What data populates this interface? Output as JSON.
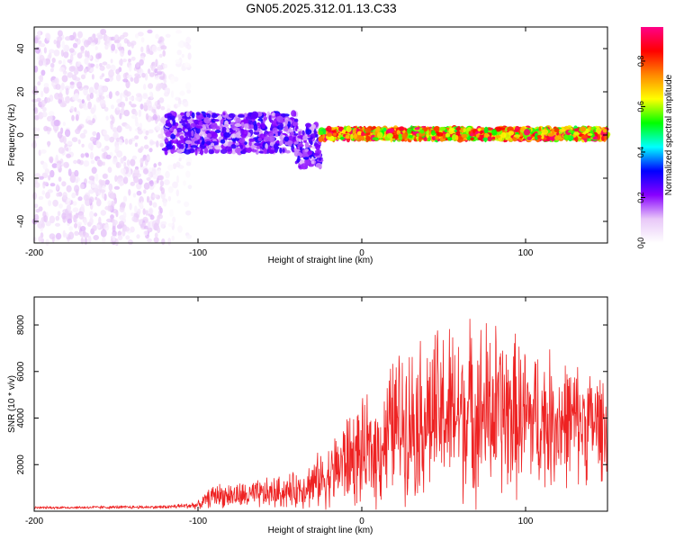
{
  "title": "GN05.2025.312.01.13.C33",
  "chart_data": [
    {
      "type": "heatmap",
      "name": "spectrogram",
      "xlabel": "Height of straight line (km)",
      "ylabel": "Frequency (Hz)",
      "xlim": [
        -200,
        150
      ],
      "ylim": [
        -50,
        50
      ],
      "xticks": [
        -200,
        -100,
        0,
        100
      ],
      "yticks": [
        -40,
        -20,
        0,
        20,
        40
      ],
      "colorbar": {
        "label": "Normalized spectral amplitude",
        "range": [
          0,
          0.95
        ],
        "ticks": [
          "0.0",
          "0.2",
          "0.4",
          "0.6",
          "0.8"
        ],
        "tick_values": [
          0,
          0.2,
          0.4,
          0.6,
          0.8
        ],
        "colors": [
          "#ffffff",
          "#e8c8f8",
          "#8800ff",
          "#0000ff",
          "#00ffff",
          "#00ff00",
          "#ffff00",
          "#ff8800",
          "#ff0000",
          "#ff0088"
        ]
      },
      "regions": [
        {
          "x": [
            -200,
            -120
          ],
          "freq_range": [
            -50,
            48
          ],
          "amplitude": [
            0.02,
            0.12
          ],
          "description_type": "noise"
        },
        {
          "x": [
            -120,
            -105
          ],
          "freq_range": [
            -50,
            48
          ],
          "amplitude": [
            0.01,
            0.05
          ],
          "description_type": "sparse-noise"
        },
        {
          "x": [
            -120,
            -40
          ],
          "freq_range": [
            -8,
            10
          ],
          "amplitude": [
            0.1,
            0.3
          ]
        },
        {
          "x": [
            -40,
            -25
          ],
          "freq_range": [
            -15,
            5
          ],
          "amplitude": [
            0.1,
            0.3
          ]
        },
        {
          "x": [
            -25,
            150
          ],
          "freq_range": [
            -2,
            3
          ],
          "amplitude": [
            0.5,
            0.95
          ]
        }
      ]
    },
    {
      "type": "line",
      "name": "snr",
      "xlabel": "Height of straight line (km)",
      "ylabel": "SNR (10 * v/v)",
      "xlim": [
        -200,
        150
      ],
      "ylim": [
        0,
        9200
      ],
      "xticks": [
        -200,
        -100,
        0,
        100
      ],
      "yticks": [
        2000,
        4000,
        6000,
        8000
      ],
      "color": "#ee2222",
      "envelope": [
        {
          "x": -200,
          "mean": 150,
          "spread": 60
        },
        {
          "x": -120,
          "mean": 180,
          "spread": 80
        },
        {
          "x": -100,
          "mean": 260,
          "spread": 200
        },
        {
          "x": -90,
          "mean": 700,
          "spread": 600
        },
        {
          "x": -70,
          "mean": 650,
          "spread": 700
        },
        {
          "x": -40,
          "mean": 900,
          "spread": 900
        },
        {
          "x": -20,
          "mean": 1500,
          "spread": 1600
        },
        {
          "x": -10,
          "mean": 2200,
          "spread": 2400
        },
        {
          "x": 10,
          "mean": 2600,
          "spread": 2800
        },
        {
          "x": 20,
          "mean": 3800,
          "spread": 3600
        },
        {
          "x": 50,
          "mean": 4200,
          "spread": 4400
        },
        {
          "x": 80,
          "mean": 4300,
          "spread": 4600
        },
        {
          "x": 100,
          "mean": 4000,
          "spread": 3800
        },
        {
          "x": 150,
          "mean": 3700,
          "spread": 2600
        }
      ]
    }
  ]
}
